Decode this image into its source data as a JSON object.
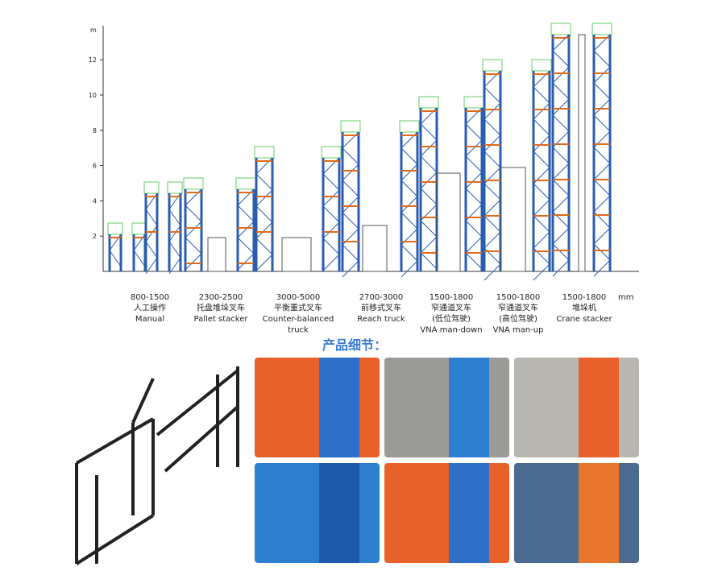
{
  "axis": {
    "unit": "m",
    "ticks": [
      2,
      4,
      6,
      8,
      10,
      12
    ]
  },
  "columns": [
    {
      "lines": [
        "800-1500",
        "人工操作",
        "Manual"
      ]
    },
    {
      "lines": [
        "2300-2500",
        "托盘堆垛叉车",
        "Pallet stacker"
      ]
    },
    {
      "lines": [
        "3000-5000",
        "平衡重式叉车",
        "Counter-balanced",
        "truck"
      ]
    },
    {
      "lines": [
        "2700-3000",
        "前移式叉车",
        "Reach truck"
      ]
    },
    {
      "lines": [
        "1500-1800",
        "窄通道叉车",
        "(低位驾驶)",
        "VNA man-down"
      ]
    },
    {
      "lines": [
        "1500-1800",
        "窄通道叉车",
        "(高位驾驶)",
        "VNA man-up"
      ]
    },
    {
      "lines": [
        "1500-1800",
        "堆垛机",
        "Crane stacker"
      ]
    }
  ],
  "unit_mm": "mm",
  "details_title": "产品细节："
}
